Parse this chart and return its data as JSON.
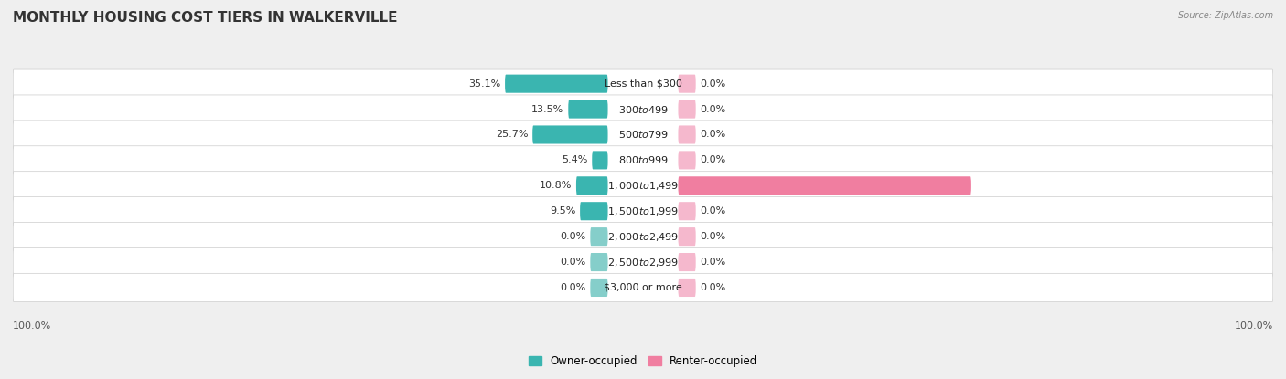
{
  "title": "MONTHLY HOUSING COST TIERS IN WALKERVILLE",
  "source": "Source: ZipAtlas.com",
  "categories": [
    "Less than $300",
    "$300 to $499",
    "$500 to $799",
    "$800 to $999",
    "$1,000 to $1,499",
    "$1,500 to $1,999",
    "$2,000 to $2,499",
    "$2,500 to $2,999",
    "$3,000 or more"
  ],
  "owner_values": [
    35.1,
    13.5,
    25.7,
    5.4,
    10.8,
    9.5,
    0.0,
    0.0,
    0.0
  ],
  "renter_values": [
    0.0,
    0.0,
    0.0,
    0.0,
    100.0,
    0.0,
    0.0,
    0.0,
    0.0
  ],
  "owner_color": "#3ab5b0",
  "renter_color": "#f07ea0",
  "owner_color_light": "#85ceca",
  "renter_color_light": "#f5b8cd",
  "bg_color": "#efefef",
  "row_bg_color": "#f7f7f7",
  "title_fontsize": 11,
  "label_fontsize": 8,
  "tick_fontsize": 8,
  "max_value": 100.0,
  "left_axis_label": "100.0%",
  "right_axis_label": "100.0%",
  "legend_owner": "Owner-occupied",
  "legend_renter": "Renter-occupied"
}
